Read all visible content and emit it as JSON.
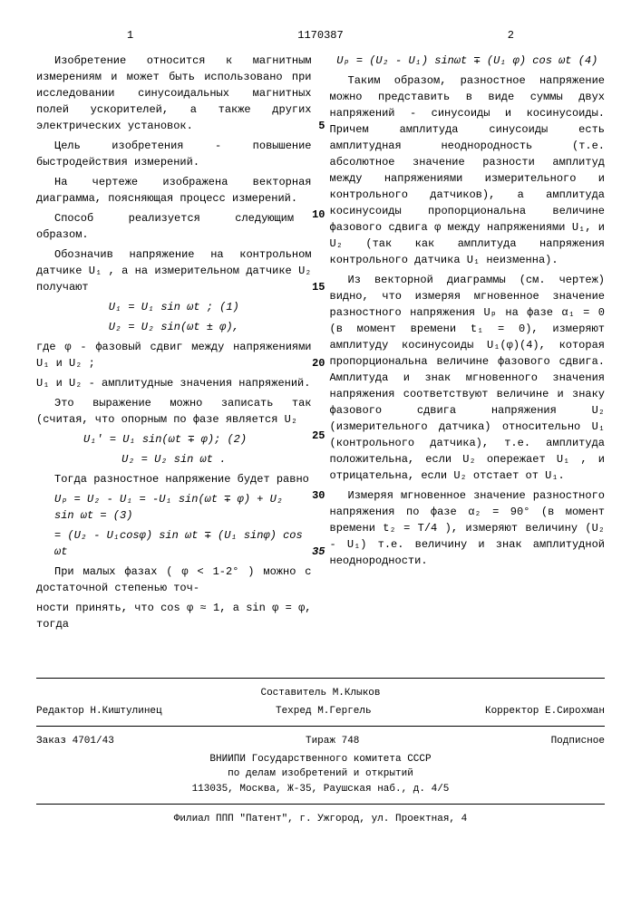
{
  "document_number": "1170387",
  "col_left": "1",
  "col_right": "2",
  "line5": "5",
  "line10": "10",
  "line15": "15",
  "line20": "20",
  "line25": "25",
  "line30": "30",
  "line35": "35",
  "p1": "Изобретение относится к магнитным измерениям и может быть использовано при исследовании синусоидальных магнитных полей ускорителей, а также других электрических установок.",
  "p2": "Цель изобретения - повышение быстродействия измерений.",
  "p3": "На чертеже изображена векторная диаграмма, поясняющая процесс измерений.",
  "p4": "Способ реализуется следующим образом.",
  "p5": "Обозначив напряжение на контрольном датчике U₁ , а на измерительном датчике U₂ получают",
  "f1a": "U₁ = U₁ sin ωt ;        (1)",
  "f1b": "U₂ = U₂ sin(ωt ± φ),",
  "p6": "где φ - фазовый сдвиг между напряжениями U₁ и U₂ ;",
  "p7": "U₁ и U₂ - амплитудные значения напряжений.",
  "p8": "Это выражение можно записать так (считая, что опорным по фазе является U₂",
  "f2a": "U₁' = U₁ sin(ωt ∓ φ);   (2)",
  "f2b": "U₂ = U₂ sin ωt .",
  "p9": "Тогда разностное напряжение будет равно",
  "f3a": "Uₚ = U₂ - U₁ = -U₁ sin(ωt ∓ φ) + U₂ sin ωt =    (3)",
  "f3b": "= (U₂ - U₁cosφ) sin ωt ∓ (U₁ sinφ) cos ωt",
  "p10": "При малых фазах ( φ < 1-2° ) можно с достаточной степенью точ-",
  "p11": "ности принять, что cos φ ≈ 1, а sin φ = φ, тогда",
  "f4": "Uₚ = (U₂ - U₁) sinωt ∓ (U₁ φ) cos ωt  (4)",
  "p12": "Таким образом, разностное напряжение можно представить в виде суммы двух напряжений - синусоиды и косинусоиды. Причем амплитуда синусоиды есть амплитудная неоднородность (т.е. абсолютное значение разности амплитуд между напряжениями измерительного и контрольного датчиков), а амплитуда косинусоиды пропорциональна величине фазового сдвига φ между напряжениями U₁, и U₂ (так как амплитуда напряжения контрольного датчика U₁ неизменна).",
  "p13": "Из векторной диаграммы (см. чертеж) видно, что измеряя мгновенное значение разностного напряжения Uₚ на фазе α₁ = 0 (в момент времени t₁ = 0), измеряют амплитуду косинусоиды U₁(φ)(4), которая пропорциональна величине фазового сдвига. Амплитуда и знак мгновенного значения напряжения соответствуют величине и знаку фазового сдвига напряжения U₂ (измерительного датчика) относительно U₁ (контрольного датчика), т.е. амплитуда положительна, если U₂ опережает U₁ , и отрицательна, если U₂ отстает от U₁.",
  "p14": "Измеряя мгновенное значение разностного напряжения по фазе α₂ = 90° (в момент времени t₂ = T/4 ), измеряют величину (U₂ - U₁) т.е. величину и знак амплитудной неоднородности.",
  "footer": {
    "editor": "Редактор Н.Киштулинец",
    "composer": "Составитель М.Клыков",
    "techred": "Техред М.Гергель",
    "corrector": "Корректор Е.Сирохман",
    "order": "Заказ 4701/43",
    "tirazh": "Тираж 748",
    "subscription": "Подписное",
    "org1": "ВНИИПИ Государственного комитета СССР",
    "org2": "по делам изобретений и открытий",
    "address1": "113035, Москва, Ж-35, Раушская наб., д. 4/5",
    "branch": "Филиал ППП \"Патент\", г. Ужгород, ул. Проектная, 4"
  }
}
